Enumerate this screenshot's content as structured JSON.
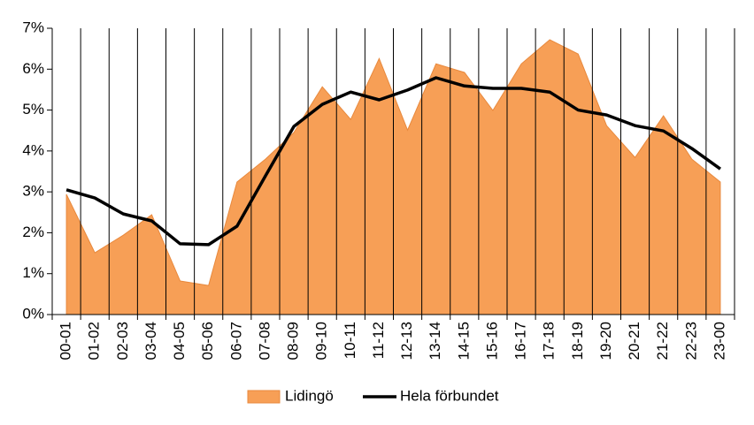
{
  "chart_data": {
    "type": "area",
    "categories": [
      "00-01",
      "01-02",
      "02-03",
      "03-04",
      "04-05",
      "05-06",
      "06-07",
      "07-08",
      "08-09",
      "09-10",
      "10-11",
      "11-12",
      "12-13",
      "13-14",
      "14-15",
      "15-16",
      "16-17",
      "17-18",
      "18-19",
      "19-20",
      "20-21",
      "21-22",
      "22-23",
      "23-00"
    ],
    "series": [
      {
        "name": "Lidingö",
        "type": "area",
        "color": "#f79f56",
        "values": [
          2.94,
          1.51,
          1.94,
          2.44,
          0.82,
          0.71,
          3.24,
          3.8,
          4.45,
          5.57,
          4.77,
          6.26,
          4.51,
          6.13,
          5.92,
          4.99,
          6.13,
          6.72,
          6.37,
          4.62,
          3.84,
          4.86,
          3.8,
          3.24
        ]
      },
      {
        "name": "Hela förbundet",
        "type": "line",
        "color": "#000000",
        "values": [
          3.05,
          2.85,
          2.46,
          2.29,
          1.73,
          1.71,
          2.16,
          3.39,
          4.6,
          5.14,
          5.44,
          5.25,
          5.49,
          5.79,
          5.59,
          5.53,
          5.53,
          5.44,
          5.0,
          4.88,
          4.62,
          4.49,
          4.06,
          3.56
        ]
      }
    ],
    "ylim": [
      0,
      7
    ],
    "yticks": [
      {
        "value": 0,
        "label": "0%"
      },
      {
        "value": 1,
        "label": "1%"
      },
      {
        "value": 2,
        "label": "2%"
      },
      {
        "value": 3,
        "label": "3%"
      },
      {
        "value": 4,
        "label": "4%"
      },
      {
        "value": 5,
        "label": "5%"
      },
      {
        "value": 6,
        "label": "6%"
      },
      {
        "value": 7,
        "label": "7%"
      }
    ],
    "grid": true,
    "legend": "bottom"
  }
}
